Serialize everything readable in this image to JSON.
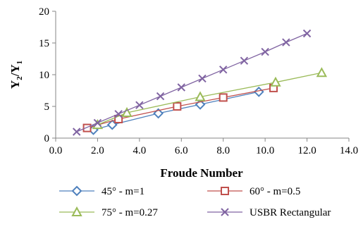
{
  "chart_data": {
    "type": "line",
    "xlabel": "Froude Number",
    "ylabel": {
      "base": "Y",
      "sub1": "2",
      "slash": "/Y",
      "sub2": "1"
    },
    "xlim": [
      0,
      14
    ],
    "ylim": [
      0,
      20
    ],
    "xticks": [
      0,
      2,
      4,
      6,
      8,
      10,
      12,
      14
    ],
    "yticks": [
      0,
      5,
      10,
      15,
      20
    ],
    "xtick_labels": [
      "0.0",
      "2.0",
      "4.0",
      "6.0",
      "8.0",
      "10.0",
      "12.0",
      "14.0"
    ],
    "ytick_labels": [
      "0",
      "5",
      "10",
      "15",
      "20"
    ],
    "grid": false,
    "legend_position": "bottom",
    "series": [
      {
        "name": "45° - m=1",
        "color": "#4f81bd",
        "marker": "diamond",
        "points": [
          [
            1.8,
            1.3
          ],
          [
            2.7,
            2.1
          ],
          [
            4.9,
            3.9
          ],
          [
            6.9,
            5.3
          ],
          [
            9.7,
            7.3
          ]
        ]
      },
      {
        "name": "60° - m=0.5",
        "color": "#c0504d",
        "marker": "square",
        "points": [
          [
            1.5,
            1.6
          ],
          [
            3.0,
            3.0
          ],
          [
            5.8,
            5.0
          ],
          [
            8.0,
            6.4
          ],
          [
            10.4,
            7.9
          ]
        ]
      },
      {
        "name": "75° - m=0.27",
        "color": "#9bbb59",
        "marker": "triangle",
        "points": [
          [
            2.0,
            2.1
          ],
          [
            3.4,
            4.0
          ],
          [
            6.9,
            6.5
          ],
          [
            10.5,
            8.8
          ],
          [
            12.7,
            10.3
          ]
        ]
      },
      {
        "name": "USBR Rectangular",
        "color": "#8064a2",
        "marker": "x",
        "points": [
          [
            1.0,
            1.0
          ],
          [
            2.0,
            2.4
          ],
          [
            3.0,
            3.8
          ],
          [
            4.0,
            5.2
          ],
          [
            5.0,
            6.6
          ],
          [
            6.0,
            8.0
          ],
          [
            7.0,
            9.4
          ],
          [
            8.0,
            10.8
          ],
          [
            9.0,
            12.2
          ],
          [
            10.0,
            13.6
          ],
          [
            11.0,
            15.1
          ],
          [
            12.0,
            16.5
          ]
        ]
      }
    ]
  }
}
